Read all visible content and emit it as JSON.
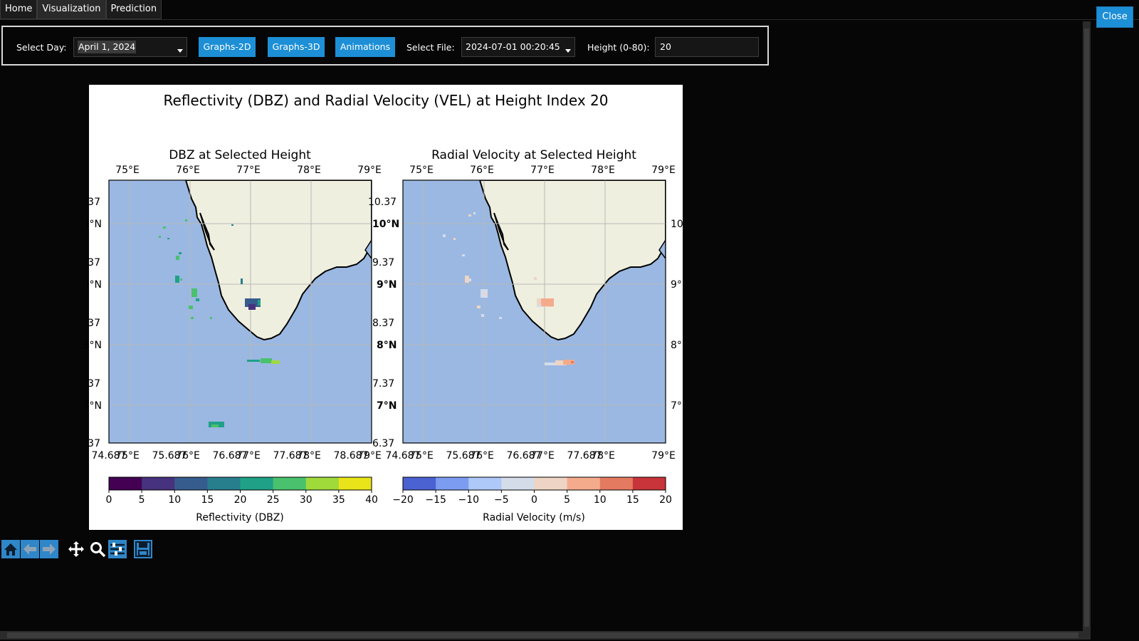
{
  "tabs": [
    "Home",
    "Visualization",
    "Prediction"
  ],
  "close_label": "Close",
  "controls": {
    "day_label": "Select Day:",
    "day_value": "April 1, 2024",
    "graphs2d": "Graphs-2D",
    "graphs3d": "Graphs-3D",
    "animations": "Animations",
    "file_label": "Select File:",
    "file_value": "2024-07-01 00:20:45",
    "height_label": "Height (0-80):",
    "height_value": "20"
  },
  "figure": {
    "suptitle": "Reflectivity (DBZ) and Radial Velocity (VEL) at Height Index 20",
    "left_title": "DBZ at Selected Height",
    "right_title": "Radial Velocity at Selected Height",
    "lon_top_labels": [
      "75°E",
      "76°E",
      "77°E",
      "78°E",
      "79°E"
    ],
    "lon_bottom_labels": [
      "75°E",
      "76°E",
      "77°E",
      "78°E",
      "79°E"
    ],
    "x_ticks": [
      "74.687",
      "75.687",
      "76.687",
      "77.687",
      "78.687"
    ],
    "lat_labels": [
      "10°N",
      "9°N",
      "8°N",
      "7°N"
    ],
    "y_ticks": [
      "10.37",
      "9.37",
      "8.37",
      "7.37",
      "6.37"
    ],
    "left_y_ticks": [
      "37",
      "37",
      "37",
      "37",
      "37"
    ],
    "left_lat_labels": [
      ")°N",
      ")°N",
      "3°N",
      "7°N"
    ],
    "right_lat_labels": [
      "10",
      "9°",
      "8°",
      "7°"
    ],
    "colors": {
      "ocean": "#9ab8e2",
      "land": "#efefdf",
      "grid": "#b8b8b8"
    }
  },
  "chart_data": [
    {
      "type": "heatmap",
      "title": "DBZ at Selected Height",
      "colorbar_label": "Reflectivity (DBZ)",
      "colorbar_ticks": [
        0,
        5,
        10,
        15,
        20,
        25,
        30,
        35,
        40
      ],
      "colorbar_colors": [
        "#440154",
        "#46327e",
        "#365c8d",
        "#277f8e",
        "#1fa187",
        "#4ac16d",
        "#9fda3a",
        "#e8e419"
      ],
      "lon_range": [
        74.687,
        79.0
      ],
      "lat_range": [
        6.37,
        10.7
      ]
    },
    {
      "type": "heatmap",
      "title": "Radial Velocity at Selected Height",
      "colorbar_label": "Radial Velocity (m/s)",
      "colorbar_ticks": [
        -20,
        -15,
        -10,
        -5,
        0,
        5,
        10,
        15,
        20
      ],
      "colorbar_tick_labels": [
        "−20",
        "−15",
        "−10",
        "−5",
        "0",
        "5",
        "10",
        "15",
        "20"
      ],
      "colorbar_colors": [
        "#4b62d2",
        "#7b9cf0",
        "#aec8f8",
        "#d4dcea",
        "#eed4c4",
        "#f4ab8c",
        "#e47a60",
        "#c8343a"
      ],
      "lon_range": [
        74.687,
        79.0
      ],
      "lat_range": [
        6.37,
        10.7
      ]
    }
  ],
  "navbar": [
    "home-icon",
    "back-arrow-icon",
    "forward-arrow-icon",
    "pan-icon",
    "zoom-icon",
    "subplots-icon",
    "save-icon"
  ]
}
